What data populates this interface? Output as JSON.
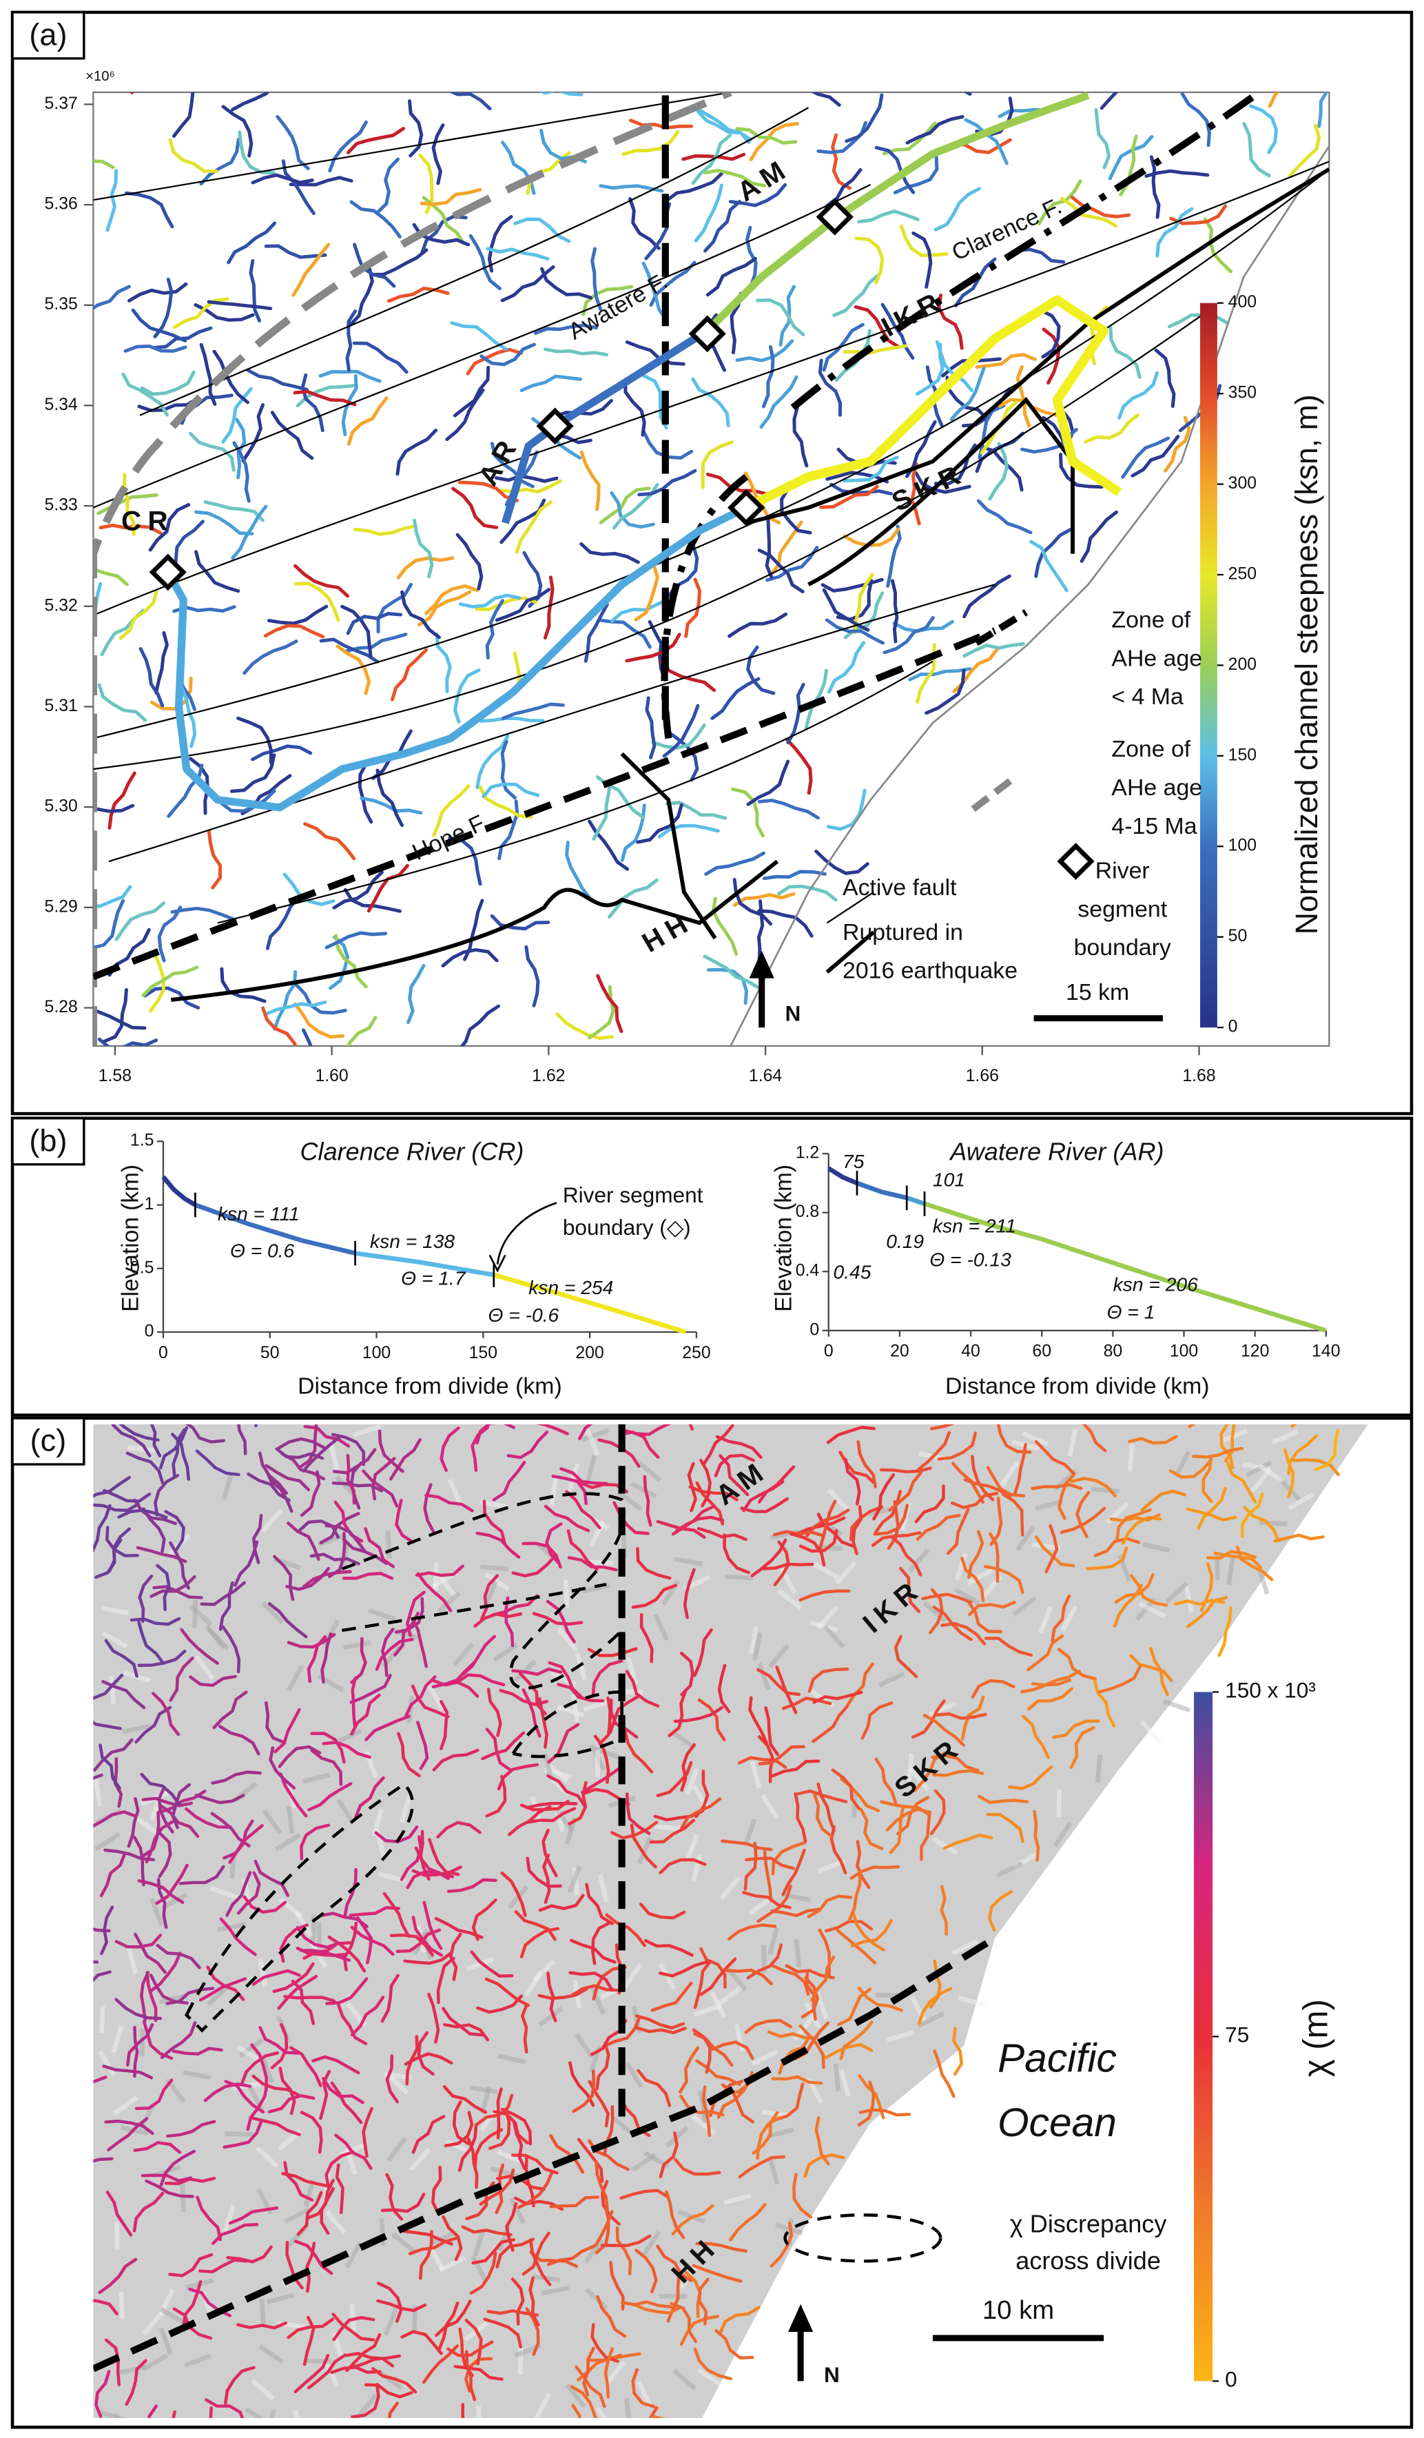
{
  "panels": [
    {
      "label": "(a)",
      "map": {
        "exponent": "×10⁶",
        "xlim": [
          1.578,
          1.692
        ],
        "ylim": [
          5.2762,
          5.3712
        ],
        "xticks": [
          1.58,
          {
            "value": 1.6,
            "label": "1.60"
          },
          1.62,
          1.64,
          1.66,
          1.68
        ],
        "yticks": [
          5.28,
          5.29,
          {
            "value": 5.3,
            "label": "5.30"
          },
          5.31,
          5.32,
          5.33,
          5.34,
          5.35,
          5.36,
          5.37
        ],
        "labels": [
          "AM",
          "IKR",
          "SKR",
          "HH",
          "CR",
          "AR",
          "Clarence F.",
          "Awatere F.",
          "Hope F."
        ],
        "legend": [
          [
            "Zone of",
            "AHe age",
            "< 4 Ma"
          ],
          [
            "Zone of",
            "AHe age",
            "4-15 Ma"
          ],
          [
            "River",
            "segment",
            "boundary"
          ],
          [
            "Active fault"
          ],
          [
            "Ruptured in",
            "2016 earthquake"
          ]
        ],
        "scale_bar": "15 km",
        "north": "N",
        "colorbar": {
          "title": "Normalized channel steepness (ksn, m)",
          "lim": [
            0,
            400
          ],
          "ticks": [
            0,
            50,
            100,
            150,
            200,
            250,
            300,
            350,
            400
          ]
        }
      }
    },
    {
      "label": "(b)"
    },
    {
      "label": "(c)",
      "map": {
        "labels": [
          "AM",
          "IKR",
          "SKR",
          "HH"
        ],
        "ocean": [
          "Pacific",
          "Ocean"
        ],
        "legend": [
          "χ Discrepancy",
          "across divide"
        ],
        "scale_bar": "10 km",
        "north": "N",
        "colorbar": {
          "title": "χ (m)",
          "lim": [
            0,
            150000
          ],
          "ticks": [
            0,
            {
              "value": 75000,
              "label": "75"
            },
            {
              "value": 150000,
              "label": "150 x 10³"
            }
          ]
        }
      }
    }
  ],
  "chart_data": [
    {
      "type": "line",
      "title": "Clarence River (CR)",
      "x_label": "Distance from divide (km)",
      "y_label": "Elevation (km)",
      "xlim": [
        0,
        250
      ],
      "ylim": [
        0,
        1.5
      ],
      "xticks": [
        0,
        50,
        100,
        150,
        200,
        250
      ],
      "yticks": [
        0,
        0.5,
        1,
        1.5
      ],
      "series": [
        {
          "color": "#2b3990",
          "x": [
            0,
            5,
            10,
            15
          ],
          "values": [
            1.22,
            1.12,
            1.05,
            1.0
          ]
        },
        {
          "color": "#3b6fc0",
          "x": [
            15,
            40,
            65,
            90
          ],
          "values": [
            1.0,
            0.85,
            0.72,
            0.62
          ]
        },
        {
          "color": "#5bb8e6",
          "x": [
            90,
            120,
            155
          ],
          "values": [
            0.62,
            0.55,
            0.45
          ]
        },
        {
          "color": "#f0e61e",
          "x": [
            155,
            180,
            210,
            245
          ],
          "values": [
            0.45,
            0.33,
            0.18,
            0
          ]
        }
      ],
      "annotations": [
        "ksn = 111",
        "Θ = 0.6",
        "ksn = 138",
        "Θ = 1.7",
        "ksn = 254",
        "Θ = -0.6"
      ],
      "note": [
        "River segment",
        "boundary (◇)"
      ]
    },
    {
      "type": "line",
      "title": "Awatere River (AR)",
      "x_label": "Distance from divide (km)",
      "y_label": "Elevation (km)",
      "xlim": [
        0,
        140
      ],
      "ylim": [
        0,
        1.2
      ],
      "xticks": [
        0,
        20,
        40,
        60,
        80,
        100,
        120,
        140
      ],
      "yticks": [
        0,
        0.4,
        0.8,
        1.2
      ],
      "series": [
        {
          "color": "#2b3990",
          "x": [
            0,
            4,
            8
          ],
          "values": [
            1.1,
            1.04,
            1.0
          ]
        },
        {
          "color": "#3b6fc0",
          "x": [
            8,
            15,
            22
          ],
          "values": [
            1.0,
            0.94,
            0.9
          ]
        },
        {
          "color": "#4a9fd8",
          "x": [
            22,
            27
          ],
          "values": [
            0.9,
            0.86
          ]
        },
        {
          "color": "#9ccc4f",
          "x": [
            27,
            45,
            60,
            80,
            100,
            120,
            140
          ],
          "values": [
            0.86,
            0.72,
            0.62,
            0.46,
            0.3,
            0.15,
            0
          ]
        }
      ],
      "annotations": [
        "75",
        "101",
        "0.45",
        "0.19",
        "ksn = 211",
        "Θ = -0.13",
        "ksn = 206",
        "Θ = 1"
      ]
    }
  ]
}
